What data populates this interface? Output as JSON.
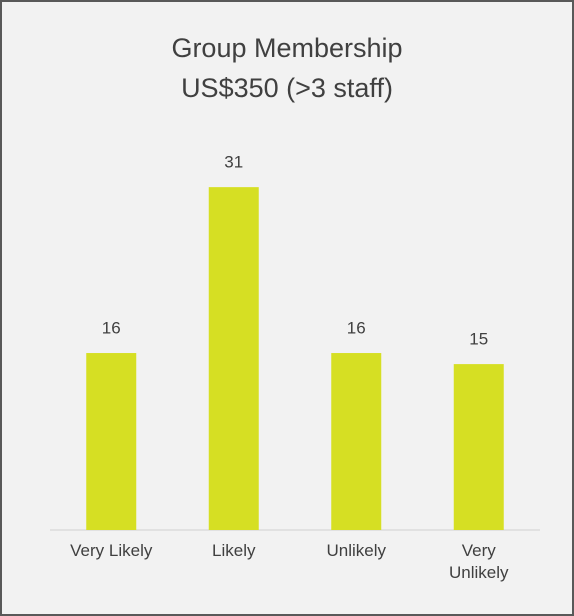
{
  "chart_data": {
    "type": "bar",
    "title": [
      "Group Membership",
      "US$350 (>3 staff)"
    ],
    "categories": [
      "Very Likely",
      "Likely",
      "Unlikely",
      "Very Unlikely"
    ],
    "values": [
      16,
      31,
      16,
      15
    ],
    "color": "#d6df23"
  }
}
